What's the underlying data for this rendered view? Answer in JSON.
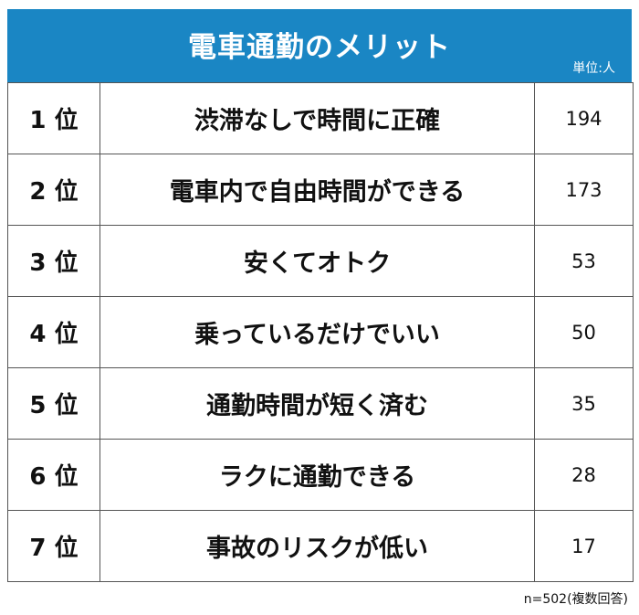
{
  "header": {
    "title": "電車通勤のメリット",
    "unit": "単位:人"
  },
  "chart_data": {
    "type": "table",
    "title": "電車通勤のメリット",
    "unit": "単位:人",
    "rows": [
      {
        "rank": "1 位",
        "item": "渋滞なしで時間に正確",
        "value": 194
      },
      {
        "rank": "2 位",
        "item": "電車内で自由時間ができる",
        "value": 173
      },
      {
        "rank": "3 位",
        "item": "安くてオトク",
        "value": 53
      },
      {
        "rank": "4 位",
        "item": "乗っているだけでいい",
        "value": 50
      },
      {
        "rank": "5 位",
        "item": "通勤時間が短く済む",
        "value": 35
      },
      {
        "rank": "6 位",
        "item": "ラクに通勤できる",
        "value": 28
      },
      {
        "rank": "7 位",
        "item": "事故のリスクが低い",
        "value": 17
      }
    ],
    "note": "n=502(複数回答)"
  },
  "footer": {
    "note": "n=502(複数回答)"
  },
  "colors": {
    "header_bg": "#1a86c4",
    "header_text": "#ffffff",
    "border": "#555555"
  }
}
